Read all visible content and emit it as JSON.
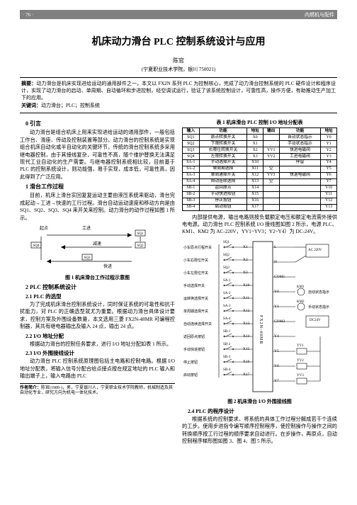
{
  "header": {
    "page_num": "· 76 ·",
    "journal": "内燃机与配件"
  },
  "title": "机床动力滑台 PLC 控制系统设计与应用",
  "author": "陈官",
  "affiliation": "(宁夏职业技术学院，银川 750021)",
  "abstract": {
    "label": "摘要：",
    "text": "动力滑台是机床实现进给运动的通用部件之一，本文以 FX2N 系列 PLC 为控制核心，完成了动力滑台控制系统的 PLC 硬件设计和程序设计，实现了动力滑台的启动、单周期、自动循环和步进控制，经空调试运行，验证了该系统控制设计，可靠性高，操作方便，有助推动生产加工下的应用。"
  },
  "keywords": {
    "label": "关键词：",
    "text": "动力滑台；PLC；控制系统"
  },
  "sec0": {
    "h": "0 引言",
    "p1": "动力滑台是组合机床上用来实现进给运动的通用部件，一般包括工作台、滑座、传动及控制装置等部分。动力滑台的控制系统是实现组合机床自动化或半自动化的关键环节，传统的滑台控制系统多采用继电器控制，由于其接线复杂，可靠性不高，随个维护替换无法满足现代工业自动化的生产需要。与继电器控制系统相比较，目前基于 PLC 的控制系统设计，则功能强，易于实现，成本低，可靠性高，因此得到了广泛应用。"
  },
  "sec1": {
    "h": "1 滑台工作过程",
    "p1": "目前，机床上滑台实回复复运动主要由液压系统来驱动，滑台完成起动→工进→快速的工行过程。滑台自动运动速度和移动方向是由 SQ1、SQ2、SQ3、SQ4 来开关来控制。动力滑台的动作过程如图 1 所示。"
  },
  "fig1": {
    "caption": "图 1 机床滑台工作过程示意图",
    "labels": {
      "start": "起点",
      "gongjin": "工进",
      "sq1": "SQ1",
      "sq2": "SQ2",
      "jiansu": "减速",
      "sq3": "SQ3",
      "kuaijin": "快进",
      "sq4": "SQ4"
    }
  },
  "sec2": {
    "h": "2 PLC 控制系统设计",
    "s21": "2.1 PLC 的选型",
    "p21": "为了完成机床滑台控制系统设计，同时保证系统的可靠性和抗干扰能力，对 PLC 的正确选型就尤为重要。根据动力滑台具体设计要求，控制方案及外围设备数量，本文选用三菱 FX2N-48MR 可编程控制器，其共有继电器输出及输入 24 点，输出 24 点。",
    "s22": "2.2 I/O 地址分配",
    "p22": "根据动力滑台的控制任务要求，进行 I/O 地址分配如表 1 所示。",
    "s23": "2.3 I/O 外围接线设计",
    "p23": "动力滑台 PLC 控制系统原理图包括主电路和控制电路。根据 I/O 地址分配表，将输入信号分配合给点接点按在规定地址的 PLC 输入和输出端子上，输入电路由 PLC"
  },
  "footnote": {
    "label": "作者简介：",
    "text": "陈官(1989-)，男，宁夏银川人，宁夏职业技术学院教师，机械制造及其自动化专业，研究方向为机电一体化技术。"
  },
  "table1": {
    "caption": "表 1 机床滑台 PLC 控制 I/O 地址分配表",
    "headers": [
      "输入",
      "功能",
      "地址",
      "输出",
      "功能",
      "地址"
    ],
    "rows": [
      [
        "SQ1",
        "原点转换开关",
        "X0",
        "",
        "自动状态指示",
        "Y0"
      ],
      [
        "SQ2",
        "下限转换开关",
        "X1",
        "",
        "手动状态指示",
        "Y1"
      ],
      [
        "SQ3",
        "右限位转换开关",
        "X2",
        "YV1",
        "快进电磁阀",
        "Y2"
      ],
      [
        "SQ4",
        "左限转换开关",
        "X3",
        "YV2",
        "工进电磁阀",
        "Y3"
      ],
      [
        "SA-1",
        "手动选择开关",
        "X10",
        "",
        "停留",
        "Y4"
      ],
      [
        "SA-2",
        "单周期选择",
        "X11",
        "空",
        "",
        "Y5"
      ],
      [
        "SA-3",
        "单周通择开关",
        "X12",
        "YV3",
        "快退电磁阀",
        "Y6"
      ],
      [
        "SA-4",
        "自动连续选择",
        "X13",
        "空",
        "",
        "Y7"
      ],
      [
        "SB-1",
        "返回原点",
        "X14",
        "",
        "",
        "Y10"
      ],
      [
        "SB-2",
        "手动快进按钮",
        "X15",
        "",
        "",
        "Y11"
      ],
      [
        "SB-3",
        "停止按钮",
        "X16",
        "",
        "",
        "Y12"
      ],
      [
        "SB-4",
        "启动按钮",
        "X17",
        "",
        "",
        "Y13"
      ]
    ]
  },
  "rcol": {
    "p1": "内部提供电源，输出电路则按负载额定电压和额定电流需外接供电电源。动力滑台 PLC 控制系统 I/O 接线图如图 2 所示，电源 PLC、KM1、KM2 为 AC-220V，YV1~YV3；Y2~Y4）为 DC-24V。"
  },
  "fig2": {
    "caption": "图 2 机床滑台 I/O 外围接线图",
    "left_labels": [
      "小车原点行程开关",
      "小车右限位开关",
      "小车左限位开关",
      "手动选择开关",
      "运转换选择开关",
      "单周期选择开关",
      "自动连续选择开关",
      "返回原点按钮",
      "手动快进按钮",
      "停止按钮",
      "启动按钮"
    ],
    "left_sw": [
      "SQ1",
      "SQ2",
      "SQ3",
      "SA-1",
      "SA-2",
      "SA-3",
      "SA-4",
      "SB-1",
      "SB-2",
      "SB-3",
      "SB-4"
    ],
    "xin": [
      "X1",
      "X2",
      "X3",
      "X10",
      "X11",
      "X12",
      "X13",
      "X14",
      "X15",
      "X16",
      "X17"
    ],
    "x0": "X0",
    "plc_label": "FX2N-48MR",
    "right_pins": [
      "L",
      "N",
      "COM1",
      "Y0",
      "Y1",
      "COM2",
      "Y4",
      "Y5",
      "Y6",
      "Y7"
    ],
    "km": [
      "KM1",
      "KM2"
    ],
    "power": [
      "AC 220V",
      "DC24V"
    ],
    "right_labels": [
      "自动状态指示",
      "手动状态指示"
    ],
    "yv": [
      "YV1",
      "YV2",
      "YV3"
    ]
  },
  "sec24": {
    "h": "2.4 PLC 的程序设计",
    "p1": "根据系统的控制要求，将系统的具体工作过程分解成若干个连续的工步。使用步进指令编写顺序控制程序，使控制操作与操作之间的转换顺序按工行过程的顺序要求自动进行。在步操作，再原点，自动控制程序梯形图如图 3、图 4、图 5 所示。"
  },
  "colors": {
    "header_bg": "#808080",
    "text": "#000000",
    "bg": "#ffffff"
  }
}
